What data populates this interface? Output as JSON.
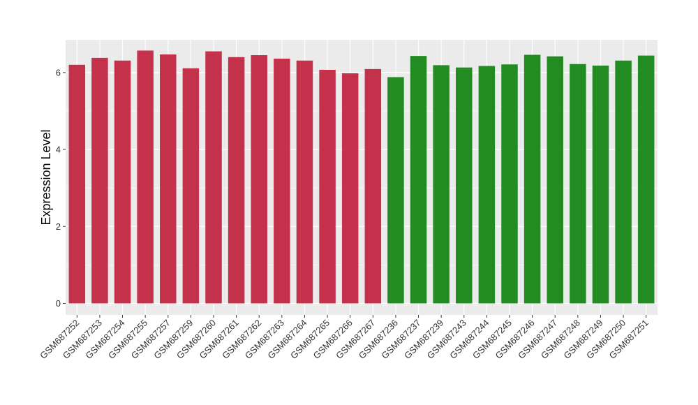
{
  "chart_data": {
    "type": "bar",
    "ylabel": "Expression Level",
    "xlabel": "",
    "ylim": [
      -0.3,
      6.85
    ],
    "yticks": [
      0,
      2,
      4,
      6
    ],
    "grid": true,
    "legend": "none",
    "colors": {
      "group1": "#C4314B",
      "group2": "#228B22",
      "panel": "#EBEBEB",
      "grid": "#FFFFFF"
    },
    "categories": [
      "GSM687252",
      "GSM687253",
      "GSM687254",
      "GSM687255",
      "GSM687257",
      "GSM687259",
      "GSM687260",
      "GSM687261",
      "GSM687262",
      "GSM687263",
      "GSM687264",
      "GSM687265",
      "GSM687266",
      "GSM687267",
      "GSM687236",
      "GSM687237",
      "GSM687239",
      "GSM687243",
      "GSM687244",
      "GSM687245",
      "GSM687246",
      "GSM687247",
      "GSM687248",
      "GSM687249",
      "GSM687250",
      "GSM687251"
    ],
    "values": [
      6.2,
      6.38,
      6.31,
      6.57,
      6.47,
      6.11,
      6.55,
      6.4,
      6.45,
      6.36,
      6.31,
      6.07,
      5.98,
      6.09,
      5.88,
      6.43,
      6.19,
      6.13,
      6.17,
      6.21,
      6.46,
      6.42,
      6.22,
      6.18,
      6.31,
      6.44
    ],
    "groups": [
      "group1",
      "group1",
      "group1",
      "group1",
      "group1",
      "group1",
      "group1",
      "group1",
      "group1",
      "group1",
      "group1",
      "group1",
      "group1",
      "group1",
      "group2",
      "group2",
      "group2",
      "group2",
      "group2",
      "group2",
      "group2",
      "group2",
      "group2",
      "group2",
      "group2",
      "group2"
    ]
  }
}
